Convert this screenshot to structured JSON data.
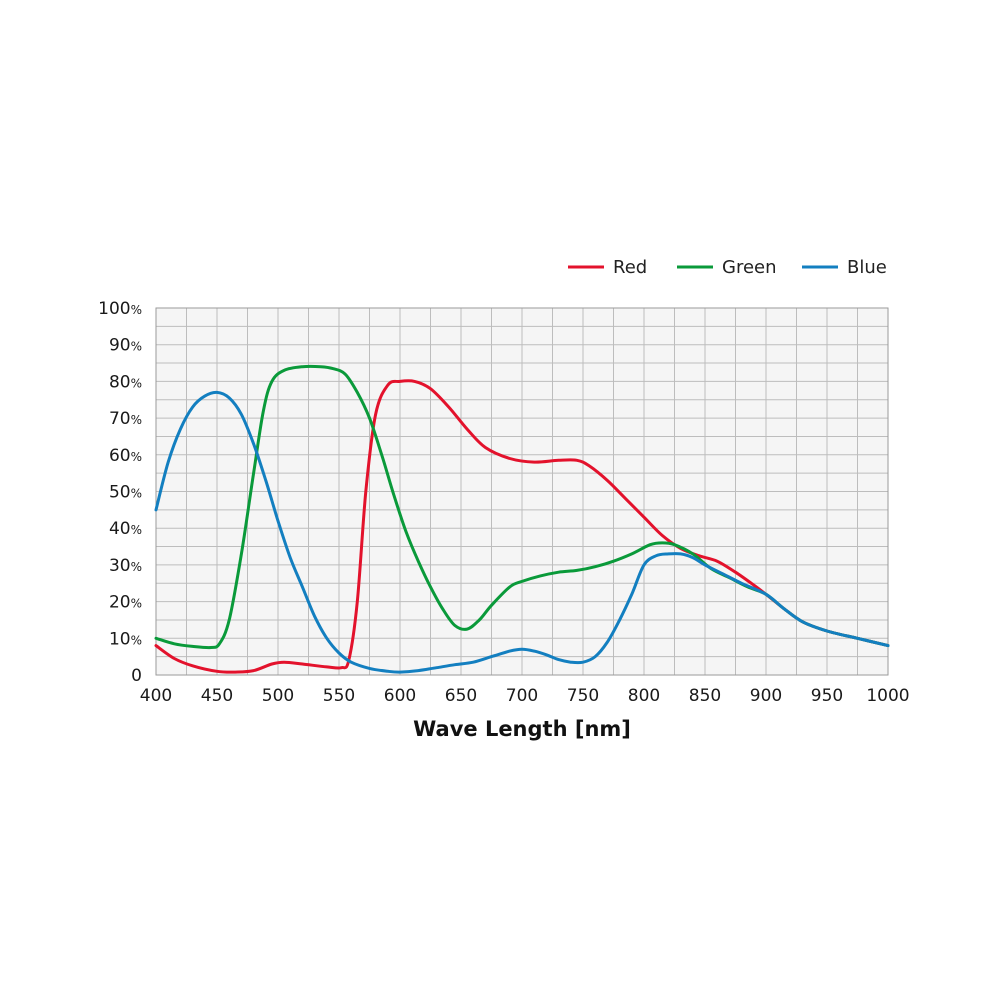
{
  "chart_data": {
    "type": "line",
    "xlabel": "Wave Length [nm]",
    "ylabel": "",
    "xlim": [
      400,
      1000
    ],
    "ylim": [
      0,
      100
    ],
    "x_ticks": [
      "400",
      "450",
      "500",
      "550",
      "600",
      "650",
      "700",
      "750",
      "800",
      "850",
      "900",
      "950",
      "1000"
    ],
    "y_ticks": [
      {
        "value": 0,
        "num": "0",
        "unit": ""
      },
      {
        "value": 10,
        "num": "10",
        "unit": "%"
      },
      {
        "value": 20,
        "num": "20",
        "unit": "%"
      },
      {
        "value": 30,
        "num": "30",
        "unit": "%"
      },
      {
        "value": 40,
        "num": "40",
        "unit": "%"
      },
      {
        "value": 50,
        "num": "50",
        "unit": "%"
      },
      {
        "value": 60,
        "num": "60",
        "unit": "%"
      },
      {
        "value": 70,
        "num": "70",
        "unit": "%"
      },
      {
        "value": 80,
        "num": "80",
        "unit": "%"
      },
      {
        "value": 90,
        "num": "90",
        "unit": "%"
      },
      {
        "value": 100,
        "num": "100",
        "unit": "%"
      }
    ],
    "grid": true,
    "legend_position": "top-right",
    "series": [
      {
        "name": "Red",
        "color": "#e3122c",
        "points": [
          [
            400,
            8
          ],
          [
            415,
            4.5
          ],
          [
            430,
            2.5
          ],
          [
            450,
            1
          ],
          [
            465,
            0.8
          ],
          [
            480,
            1.2
          ],
          [
            495,
            3
          ],
          [
            505,
            3.5
          ],
          [
            520,
            3
          ],
          [
            540,
            2.2
          ],
          [
            552,
            2
          ],
          [
            558,
            4
          ],
          [
            565,
            20
          ],
          [
            572,
            50
          ],
          [
            580,
            71
          ],
          [
            590,
            79
          ],
          [
            600,
            80
          ],
          [
            612,
            80
          ],
          [
            625,
            78
          ],
          [
            640,
            73
          ],
          [
            655,
            67
          ],
          [
            670,
            62
          ],
          [
            690,
            59
          ],
          [
            710,
            58
          ],
          [
            730,
            58.5
          ],
          [
            745,
            58.5
          ],
          [
            755,
            57
          ],
          [
            770,
            53
          ],
          [
            785,
            48
          ],
          [
            800,
            43
          ],
          [
            815,
            38
          ],
          [
            830,
            34.5
          ],
          [
            845,
            32.5
          ],
          [
            860,
            31
          ],
          [
            875,
            28
          ],
          [
            890,
            24.5
          ],
          [
            900,
            22
          ],
          [
            915,
            18
          ],
          [
            930,
            14.5
          ],
          [
            950,
            12
          ],
          [
            975,
            10
          ],
          [
            1000,
            8
          ]
        ]
      },
      {
        "name": "Green",
        "color": "#0a9a3a",
        "points": [
          [
            400,
            10
          ],
          [
            415,
            8.5
          ],
          [
            430,
            7.8
          ],
          [
            445,
            7.5
          ],
          [
            452,
            8.5
          ],
          [
            460,
            15
          ],
          [
            470,
            33
          ],
          [
            480,
            55
          ],
          [
            488,
            72
          ],
          [
            495,
            80
          ],
          [
            505,
            83
          ],
          [
            520,
            84
          ],
          [
            535,
            84
          ],
          [
            545,
            83.5
          ],
          [
            555,
            82
          ],
          [
            565,
            77
          ],
          [
            575,
            70
          ],
          [
            585,
            60
          ],
          [
            595,
            49
          ],
          [
            605,
            39
          ],
          [
            615,
            31
          ],
          [
            625,
            24
          ],
          [
            635,
            18
          ],
          [
            645,
            13.5
          ],
          [
            655,
            12.5
          ],
          [
            665,
            15
          ],
          [
            675,
            19
          ],
          [
            690,
            24
          ],
          [
            700,
            25.5
          ],
          [
            715,
            27
          ],
          [
            730,
            28
          ],
          [
            745,
            28.5
          ],
          [
            760,
            29.5
          ],
          [
            775,
            31
          ],
          [
            790,
            33
          ],
          [
            805,
            35.5
          ],
          [
            815,
            36
          ],
          [
            825,
            35.5
          ],
          [
            840,
            33
          ],
          [
            855,
            29
          ],
          [
            870,
            26.5
          ],
          [
            885,
            24
          ],
          [
            900,
            22
          ],
          [
            915,
            18
          ],
          [
            930,
            14.5
          ],
          [
            950,
            12
          ],
          [
            975,
            10
          ],
          [
            1000,
            8
          ]
        ]
      },
      {
        "name": "Blue",
        "color": "#137fc0",
        "points": [
          [
            400,
            45
          ],
          [
            410,
            58
          ],
          [
            420,
            67
          ],
          [
            430,
            73
          ],
          [
            440,
            76
          ],
          [
            450,
            77
          ],
          [
            460,
            75.5
          ],
          [
            470,
            71
          ],
          [
            480,
            63
          ],
          [
            490,
            53
          ],
          [
            500,
            42
          ],
          [
            510,
            32
          ],
          [
            520,
            24
          ],
          [
            530,
            16
          ],
          [
            540,
            10
          ],
          [
            550,
            6
          ],
          [
            560,
            3.5
          ],
          [
            575,
            1.8
          ],
          [
            590,
            1
          ],
          [
            600,
            0.8
          ],
          [
            615,
            1.2
          ],
          [
            630,
            2
          ],
          [
            645,
            2.8
          ],
          [
            660,
            3.5
          ],
          [
            675,
            5
          ],
          [
            690,
            6.5
          ],
          [
            700,
            7
          ],
          [
            710,
            6.5
          ],
          [
            720,
            5.5
          ],
          [
            730,
            4.2
          ],
          [
            740,
            3.5
          ],
          [
            750,
            3.5
          ],
          [
            760,
            5
          ],
          [
            770,
            9
          ],
          [
            780,
            15
          ],
          [
            790,
            22
          ],
          [
            800,
            30
          ],
          [
            810,
            32.5
          ],
          [
            820,
            33
          ],
          [
            830,
            33
          ],
          [
            840,
            32
          ],
          [
            850,
            30
          ],
          [
            865,
            27.5
          ],
          [
            880,
            25
          ],
          [
            900,
            22
          ],
          [
            915,
            18
          ],
          [
            930,
            14.5
          ],
          [
            950,
            12
          ],
          [
            975,
            10
          ],
          [
            1000,
            8
          ]
        ]
      }
    ]
  }
}
